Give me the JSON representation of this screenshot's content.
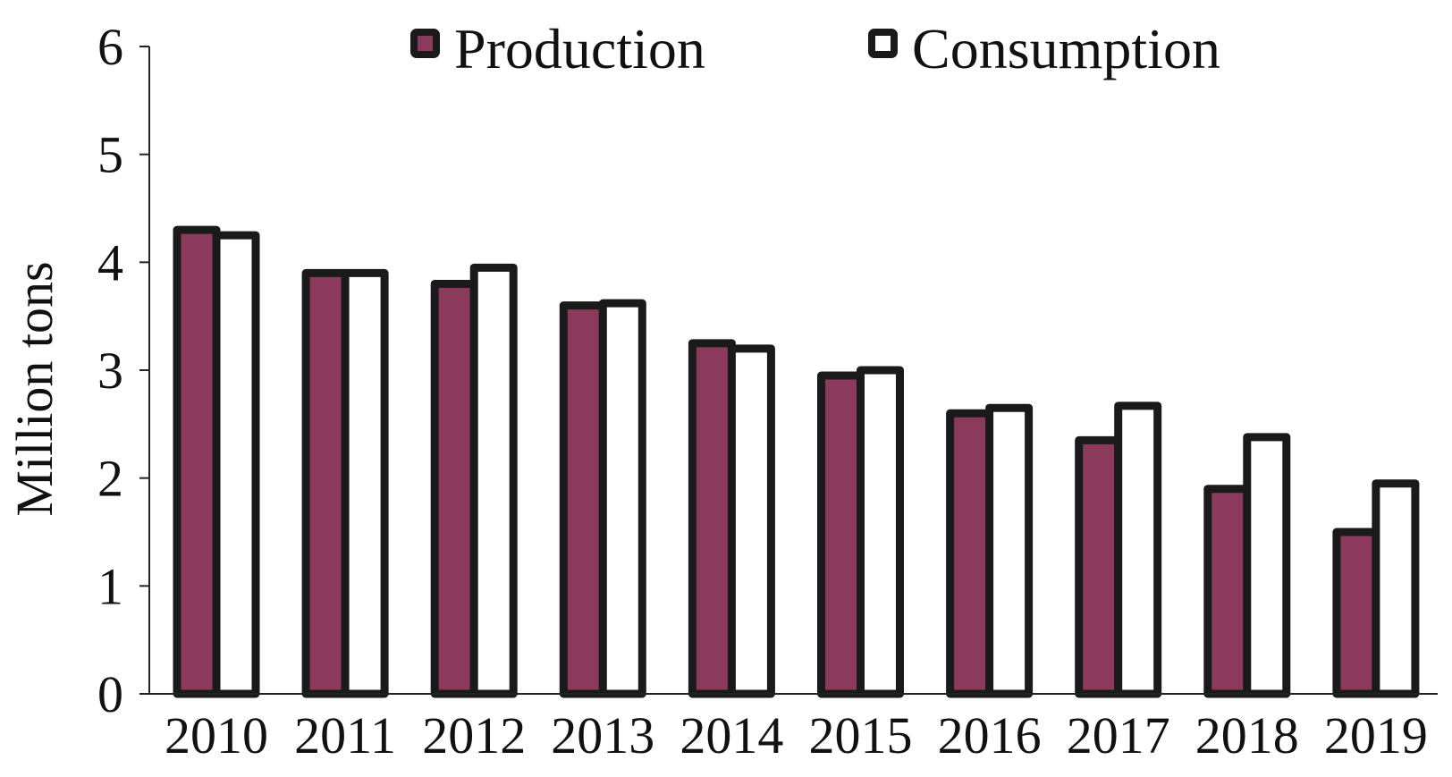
{
  "chart_data": {
    "type": "bar",
    "categories": [
      "2010",
      "2011",
      "2012",
      "2013",
      "2014",
      "2015",
      "2016",
      "2017",
      "2018",
      "2019"
    ],
    "series": [
      {
        "name": "Production",
        "values": [
          4.3,
          3.9,
          3.8,
          3.6,
          3.25,
          2.95,
          2.6,
          2.35,
          1.9,
          1.5
        ],
        "color": "#8b3a5c"
      },
      {
        "name": "Consumption",
        "values": [
          4.25,
          3.9,
          3.95,
          3.62,
          3.2,
          3.0,
          2.65,
          2.67,
          2.38,
          1.95
        ],
        "color": "#ffffff"
      }
    ],
    "title": "",
    "xlabel": "",
    "ylabel": "Million tons",
    "ylim": [
      0,
      6
    ],
    "yticks": [
      "0",
      "1",
      "2",
      "3",
      "4",
      "5",
      "6"
    ],
    "grid": false,
    "legend_position": "top",
    "bar_outline_color": "#1a1a1a"
  }
}
